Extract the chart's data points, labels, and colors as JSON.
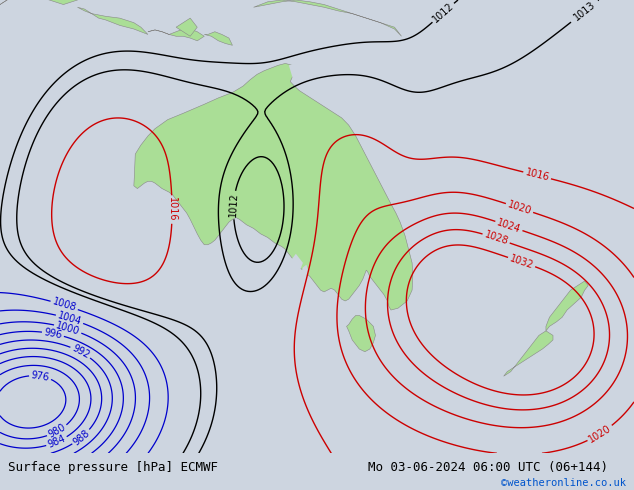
{
  "title_left": "Surface pressure [hPa] ECMWF",
  "title_right": "Mo 03-06-2024 06:00 UTC (06+144)",
  "copyright": "©weatheronline.co.uk",
  "background_color": "#cdd5e0",
  "land_color": "#aade96",
  "ocean_color": "#cdd5e0",
  "border_color": "#888888",
  "fig_width": 6.34,
  "fig_height": 4.9,
  "dpi": 100,
  "bottom_bar_color": "#ffffff",
  "title_fontsize": 9,
  "copyright_color": "#0055cc",
  "isobar_black_color": "#000000",
  "isobar_blue_color": "#0000cc",
  "isobar_red_color": "#cc0000",
  "label_fontsize": 7,
  "lon_min": 95,
  "lon_max": 185,
  "lat_min": -55,
  "lat_max": -5
}
